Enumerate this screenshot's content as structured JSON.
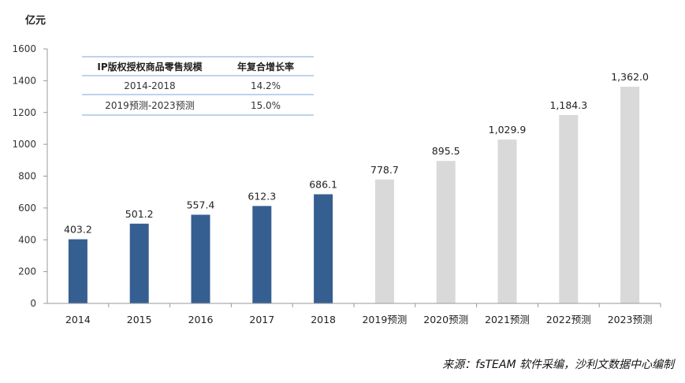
{
  "chart_data": {
    "type": "bar",
    "unit_label": "亿元",
    "categories": [
      "2014",
      "2015",
      "2016",
      "2017",
      "2018",
      "2019预测",
      "2020预测",
      "2021预测",
      "2022预测",
      "2023预测"
    ],
    "values": [
      403.2,
      501.2,
      557.4,
      612.3,
      686.1,
      778.7,
      895.5,
      1029.9,
      1184.3,
      1362.0
    ],
    "value_labels": [
      "403.2",
      "501.2",
      "557.4",
      "612.3",
      "686.1",
      "778.7",
      "895.5",
      "1,029.9",
      "1,184.3",
      "1,362.0"
    ],
    "forecast_from_index": 5,
    "ylim": [
      0,
      1600
    ],
    "yticks": [
      0,
      200,
      400,
      600,
      800,
      1000,
      1200,
      1400,
      1600
    ],
    "colors": {
      "actual": "#365f91",
      "forecast": "#d9d9d9",
      "axis": "#999999"
    },
    "table": {
      "headers": [
        "IP版权授权商品零售规模",
        "年复合增长率"
      ],
      "rows": [
        [
          "2014-2018",
          "14.2%"
        ],
        [
          "2019预测-2023预测",
          "15.0%"
        ]
      ],
      "line_color": "#7da7d9"
    },
    "source": "来源：fsTEAM 软件采编，沙利文数据中心编制"
  }
}
